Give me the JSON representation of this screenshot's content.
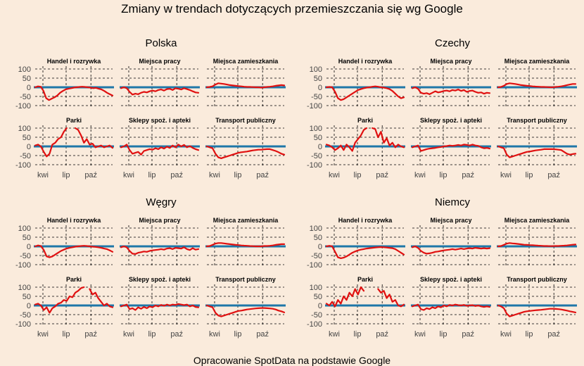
{
  "title": "Zmiany w trendach dotyczących przemieszczania się wg Google",
  "caption": "Opracowanie SpotData na podstawie Google",
  "colors": {
    "background": "#faebdc",
    "series": "#e01010",
    "zero_line": "#1f77a8",
    "grid": "#000000",
    "text": "#000000",
    "tick_text": "#444444"
  },
  "chart_data": {
    "type": "line",
    "facet_titles": [
      "Handel i rozrywka",
      "Miejsca pracy",
      "Miejsca zamieszkania",
      "Parki",
      "Sklepy spoż. i apteki",
      "Transport publiczny"
    ],
    "y_ticks": [
      100,
      50,
      0,
      -50,
      -100
    ],
    "y_tick_labels": [
      "100",
      "50",
      "0",
      "-50",
      "-100"
    ],
    "ylim": [
      -110,
      110
    ],
    "x_tick_positions": [
      0.1,
      0.4,
      0.72
    ],
    "x_tick_labels": [
      "kwi",
      "lip",
      "paź"
    ],
    "grid": true,
    "countries": [
      {
        "name": "Polska",
        "series": [
          {
            "values": [
              0,
              5,
              3,
              -20,
              -60,
              -70,
              -62,
              -55,
              -45,
              -30,
              -20,
              -12,
              -8,
              -5,
              -2,
              0,
              2,
              3,
              2,
              0,
              -2,
              -5,
              -3,
              -8,
              -12,
              -20,
              -30,
              -38,
              -45
            ]
          },
          {
            "values": [
              -5,
              0,
              -5,
              -25,
              -40,
              -35,
              -38,
              -30,
              -25,
              -28,
              -22,
              -18,
              -22,
              -15,
              -12,
              -18,
              -10,
              -8,
              -15,
              -5,
              -8,
              -12,
              -5,
              -10,
              -15,
              -22,
              -28,
              -30
            ]
          },
          {
            "values": [
              0,
              2,
              5,
              15,
              22,
              20,
              18,
              15,
              12,
              10,
              8,
              6,
              5,
              3,
              2,
              2,
              1,
              0,
              0,
              -2,
              0,
              2,
              3,
              5,
              8,
              10,
              12,
              10
            ]
          },
          {
            "values": [
              5,
              10,
              0,
              -30,
              -55,
              -40,
              10,
              20,
              40,
              50,
              80,
              100,
              null,
              null,
              100,
              90,
              60,
              20,
              40,
              10,
              15,
              -5,
              0,
              5,
              -5,
              0,
              5,
              -8
            ]
          },
          {
            "values": [
              -5,
              0,
              10,
              -20,
              -40,
              -35,
              -30,
              -45,
              -25,
              -20,
              -15,
              -18,
              -10,
              -15,
              -5,
              -12,
              -2,
              -8,
              5,
              -5,
              10,
              0,
              8,
              -5,
              2,
              -8,
              -15,
              -20
            ]
          },
          {
            "values": [
              0,
              -5,
              -10,
              -40,
              -60,
              -65,
              -60,
              -55,
              -50,
              -45,
              -40,
              -35,
              -32,
              -30,
              -28,
              -25,
              -22,
              -20,
              -18,
              -18,
              -16,
              -15,
              -15,
              -20,
              -25,
              -32,
              -40,
              -45
            ]
          }
        ]
      },
      {
        "name": "Czechy",
        "series": [
          {
            "values": [
              0,
              2,
              0,
              -25,
              -60,
              -70,
              -65,
              -55,
              -45,
              -35,
              -25,
              -15,
              -10,
              -5,
              -2,
              0,
              3,
              5,
              3,
              0,
              -2,
              -5,
              -10,
              -20,
              -35,
              -50,
              -60,
              -55
            ]
          },
          {
            "values": [
              -5,
              0,
              -8,
              -30,
              -35,
              -32,
              -38,
              -30,
              -22,
              -28,
              -25,
              -20,
              -18,
              -22,
              -15,
              -18,
              -12,
              -20,
              -15,
              -25,
              -20,
              -18,
              -25,
              -30,
              -28,
              -35,
              -30,
              -32
            ]
          },
          {
            "values": [
              0,
              2,
              8,
              18,
              22,
              20,
              18,
              15,
              12,
              10,
              8,
              7,
              5,
              4,
              3,
              2,
              2,
              1,
              0,
              0,
              2,
              3,
              5,
              8,
              12,
              15,
              18,
              18
            ]
          },
          {
            "values": [
              10,
              5,
              -5,
              -20,
              -10,
              5,
              -20,
              10,
              -5,
              -25,
              20,
              40,
              60,
              90,
              100,
              null,
              100,
              95,
              50,
              80,
              20,
              45,
              5,
              20,
              -5,
              10,
              0,
              -5
            ]
          },
          {
            "values": [
              -5,
              0,
              5,
              -25,
              -20,
              -15,
              -12,
              -10,
              -8,
              -5,
              -3,
              0,
              2,
              5,
              3,
              5,
              8,
              5,
              10,
              8,
              5,
              10,
              5,
              3,
              -5,
              -10,
              -8,
              -12
            ]
          },
          {
            "values": [
              0,
              -5,
              -10,
              -45,
              -60,
              -55,
              -50,
              -45,
              -40,
              -35,
              -30,
              -28,
              -25,
              -22,
              -20,
              -18,
              -15,
              -15,
              -15,
              -15,
              -16,
              -18,
              -20,
              -30,
              -40,
              -45,
              -42,
              -40
            ]
          }
        ]
      },
      {
        "name": "Węgry",
        "series": [
          {
            "values": [
              0,
              5,
              2,
              -20,
              -55,
              -60,
              -55,
              -45,
              -35,
              -25,
              -18,
              -12,
              -8,
              -5,
              -2,
              0,
              2,
              3,
              2,
              0,
              -2,
              -3,
              -5,
              -8,
              -12,
              -15,
              -22,
              -30
            ]
          },
          {
            "values": [
              -5,
              0,
              -5,
              -25,
              -40,
              -42,
              -35,
              -32,
              -28,
              -30,
              -25,
              -22,
              -20,
              -18,
              -15,
              -18,
              -12,
              -10,
              -15,
              -8,
              -10,
              -12,
              -5,
              -15,
              -20,
              -10,
              -18,
              -15
            ]
          },
          {
            "values": [
              0,
              2,
              8,
              15,
              18,
              18,
              16,
              14,
              12,
              10,
              8,
              7,
              5,
              4,
              3,
              2,
              1,
              0,
              0,
              0,
              2,
              2,
              3,
              5,
              8,
              10,
              12,
              12
            ]
          },
          {
            "values": [
              5,
              10,
              0,
              -25,
              -10,
              -40,
              -15,
              -5,
              10,
              15,
              30,
              25,
              50,
              45,
              70,
              80,
              95,
              100,
              null,
              90,
              60,
              70,
              40,
              20,
              0,
              10,
              -5,
              -10
            ]
          },
          {
            "values": [
              -5,
              0,
              5,
              -20,
              -15,
              -25,
              -10,
              -18,
              -8,
              -15,
              -5,
              -10,
              0,
              -5,
              3,
              -2,
              5,
              0,
              5,
              3,
              8,
              5,
              2,
              5,
              -5,
              0,
              -8,
              -10
            ]
          },
          {
            "values": [
              0,
              -5,
              -10,
              -40,
              -55,
              -60,
              -55,
              -50,
              -45,
              -40,
              -35,
              -30,
              -28,
              -25,
              -22,
              -20,
              -18,
              -16,
              -15,
              -14,
              -14,
              -15,
              -16,
              -18,
              -22,
              -28,
              -32,
              -38
            ]
          }
        ]
      },
      {
        "name": "Niemcy",
        "series": [
          {
            "values": [
              0,
              3,
              0,
              -30,
              -60,
              -65,
              -62,
              -55,
              -45,
              -35,
              -28,
              -22,
              -18,
              -15,
              -12,
              -10,
              -8,
              -6,
              -5,
              -4,
              -5,
              -6,
              -8,
              -10,
              -15,
              -25,
              -35,
              -45
            ]
          },
          {
            "values": [
              -5,
              0,
              -8,
              -25,
              -35,
              -40,
              -38,
              -35,
              -30,
              -28,
              -25,
              -22,
              -20,
              -18,
              -15,
              -18,
              -15,
              -12,
              -15,
              -12,
              -10,
              -12,
              -8,
              -10,
              -12,
              -10,
              -12,
              -10
            ]
          },
          {
            "values": [
              0,
              2,
              8,
              15,
              18,
              16,
              15,
              13,
              11,
              9,
              8,
              7,
              6,
              5,
              4,
              3,
              2,
              2,
              1,
              1,
              2,
              2,
              3,
              4,
              5,
              7,
              9,
              10
            ]
          },
          {
            "values": [
              10,
              0,
              20,
              -5,
              30,
              10,
              50,
              30,
              70,
              50,
              90,
              60,
              100,
              80,
              null,
              null,
              100,
              null,
              90,
              70,
              80,
              40,
              60,
              20,
              30,
              0,
              -5,
              5
            ]
          },
          {
            "values": [
              -5,
              0,
              5,
              -20,
              -25,
              -15,
              -20,
              -10,
              -15,
              -5,
              -10,
              0,
              -5,
              3,
              0,
              5,
              2,
              0,
              3,
              -2,
              0,
              2,
              -3,
              0,
              -5,
              -8,
              -5,
              -8
            ]
          },
          {
            "values": [
              0,
              -5,
              -15,
              -45,
              -60,
              -55,
              -50,
              -45,
              -40,
              -35,
              -32,
              -30,
              -28,
              -26,
              -25,
              -24,
              -22,
              -20,
              -18,
              -18,
              -19,
              -20,
              -22,
              -25,
              -28,
              -32,
              -35,
              -38
            ]
          }
        ]
      }
    ]
  }
}
